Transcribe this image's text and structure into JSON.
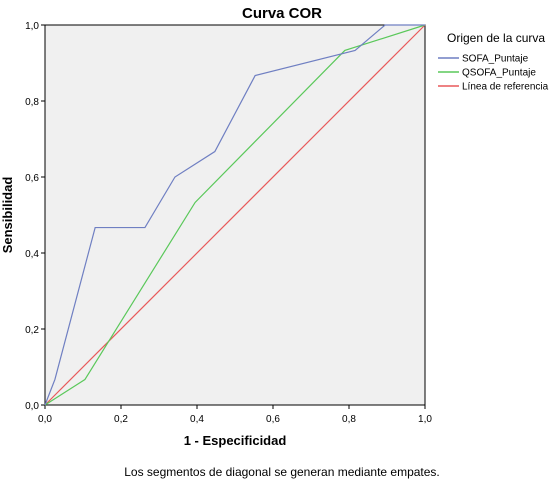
{
  "chart_data": {
    "type": "line",
    "title": "Curva COR",
    "xlabel": "1 - Especificidad",
    "ylabel": "Sensibilidad",
    "xlim": [
      0,
      1
    ],
    "ylim": [
      0,
      1
    ],
    "x_ticks": [
      "0,0",
      "0,2",
      "0,4",
      "0,6",
      "0,8",
      "1,0"
    ],
    "y_ticks": [
      "0,0",
      "0,2",
      "0,4",
      "0,6",
      "0,8",
      "1,0"
    ],
    "grid": false,
    "legend_title": "Origen de la curva",
    "legend_position": "right",
    "footnote": "Los segmentos de diagonal se generan mediante empates.",
    "series": [
      {
        "name": "SOFA_Puntaje",
        "color": "#6f7fc2",
        "points": [
          [
            0,
            0
          ],
          [
            0.026,
            0.067
          ],
          [
            0.132,
            0.467
          ],
          [
            0.263,
            0.467
          ],
          [
            0.342,
            0.6
          ],
          [
            0.447,
            0.667
          ],
          [
            0.553,
            0.867
          ],
          [
            0.816,
            0.933
          ],
          [
            0.895,
            1.0
          ],
          [
            1.0,
            1.0
          ]
        ]
      },
      {
        "name": "QSOFA_Puntaje",
        "color": "#5ac85a",
        "points": [
          [
            0,
            0
          ],
          [
            0.105,
            0.067
          ],
          [
            0.395,
            0.533
          ],
          [
            0.789,
            0.933
          ],
          [
            1.0,
            1.0
          ]
        ]
      },
      {
        "name": "Línea de referencia",
        "color": "#e8595a",
        "points": [
          [
            0,
            0
          ],
          [
            1,
            1
          ]
        ]
      }
    ]
  }
}
